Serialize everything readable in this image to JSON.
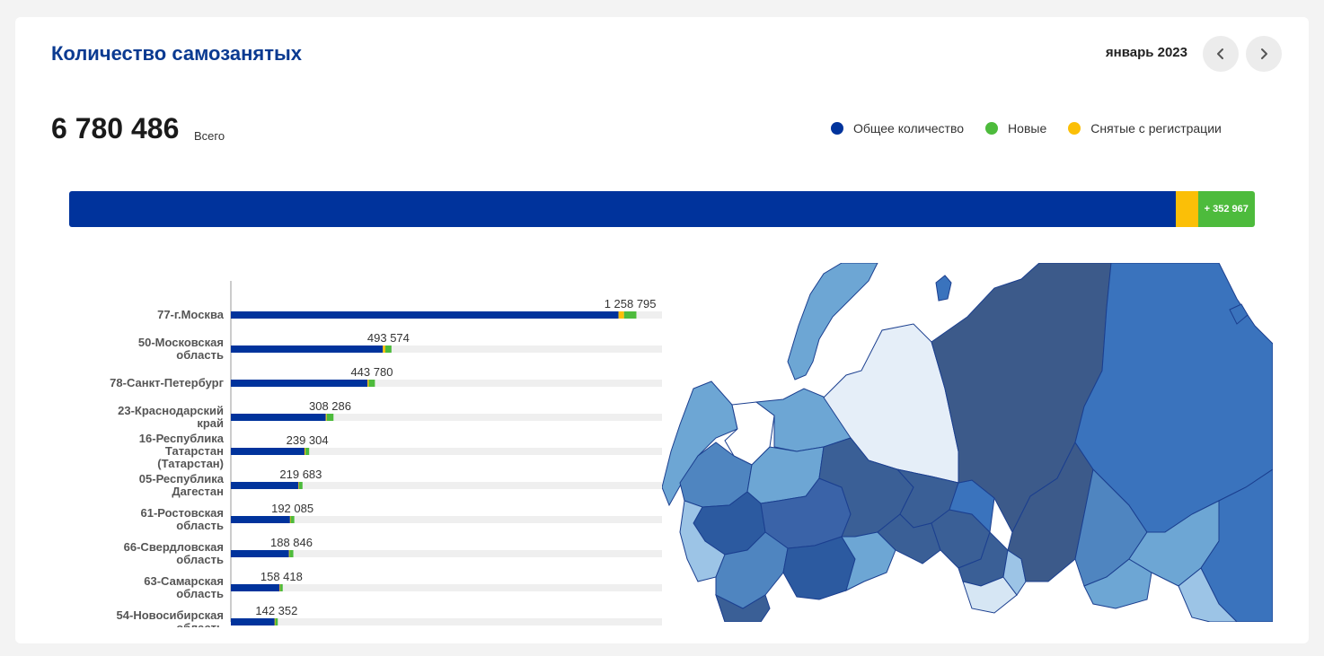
{
  "header": {
    "title": "Количество самозанятых",
    "period": "январь 2023",
    "prev_icon": "chevron-left-icon",
    "next_icon": "chevron-right-icon"
  },
  "summary": {
    "total": "6 780 486",
    "total_label": "Всего",
    "new_label": "+ 352 967"
  },
  "colors": {
    "total": "#00339c",
    "new": "#4dbb3c",
    "removed": "#fbbf07",
    "track": "#efefef"
  },
  "chart_data": {
    "type": "bar",
    "orientation": "horizontal",
    "legend": {
      "position": "top-right",
      "entries": [
        "Общее количество",
        "Новые",
        "Снятые с регистрации"
      ]
    },
    "summary_bar": {
      "total_share": 0.933,
      "removed_share": 0.019,
      "new_share": 0.048
    },
    "xlim": [
      0,
      1400000
    ],
    "categories": [
      [
        "77-г.Москва"
      ],
      [
        "50-Московская",
        "область"
      ],
      [
        "78-Санкт-Петербург"
      ],
      [
        "23-Краснодарский",
        "край"
      ],
      [
        "16-Республика",
        "Татарстан",
        "(Татарстан)"
      ],
      [
        "05-Республика",
        "Дагестан"
      ],
      [
        "61-Ростовская",
        "область"
      ],
      [
        "66-Свердловская",
        "область"
      ],
      [
        "63-Самарская",
        "область"
      ],
      [
        "54-Новосибирская",
        "область"
      ]
    ],
    "values": [
      1258795,
      493574,
      443780,
      308286,
      239304,
      219683,
      192085,
      188846,
      158418,
      142352
    ],
    "value_labels": [
      "1 258 795",
      "493 574",
      "443 780",
      "308 286",
      "239 304",
      "219 683",
      "192 085",
      "188 846",
      "158 418",
      "142 352"
    ],
    "new_values": [
      40000,
      20000,
      20000,
      22000,
      12000,
      11000,
      12000,
      12000,
      8000,
      8000
    ],
    "removed_values": [
      18000,
      8000,
      4000,
      3000,
      3000,
      2000,
      2000,
      2000,
      2000,
      2000
    ]
  }
}
